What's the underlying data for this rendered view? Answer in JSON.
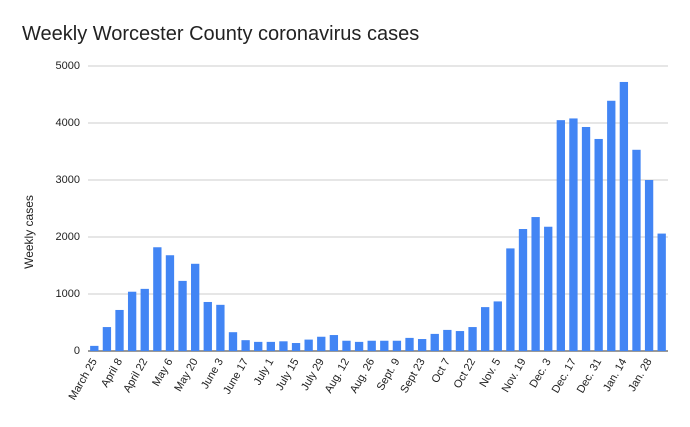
{
  "chart_data": {
    "type": "bar",
    "title": "Weekly Worcester County coronavirus cases",
    "y_label": "Weekly cases",
    "categories": [
      "March 25",
      null,
      "April 8",
      null,
      "April 22",
      null,
      "May 6",
      null,
      "May 20",
      null,
      "June 3",
      null,
      "June 17",
      null,
      "July 1",
      null,
      "July 15",
      null,
      "July 29",
      null,
      "Aug. 12",
      null,
      "Aug. 26",
      null,
      "Sept. 9",
      null,
      "Sept 23",
      null,
      "Oct 7",
      null,
      "Oct 22",
      null,
      "Nov. 5",
      null,
      "Nov. 19",
      null,
      "Dec. 3",
      null,
      "Dec. 17",
      null,
      "Dec. 31",
      null,
      "Jan. 14",
      null,
      "Jan. 28",
      null
    ],
    "values": [
      90,
      420,
      720,
      1040,
      1090,
      1820,
      1680,
      1230,
      1530,
      860,
      810,
      330,
      190,
      160,
      160,
      170,
      140,
      200,
      250,
      280,
      180,
      160,
      180,
      180,
      180,
      230,
      210,
      300,
      370,
      350,
      420,
      770,
      870,
      1800,
      2140,
      2350,
      2180,
      4050,
      4080,
      3930,
      3720,
      4390,
      4720,
      3530,
      3000,
      2060
    ],
    "color": "#4285f4",
    "ylim": [
      0,
      5000
    ],
    "yticks": [
      0,
      1000,
      2000,
      3000,
      4000,
      5000
    ],
    "grid": true
  }
}
